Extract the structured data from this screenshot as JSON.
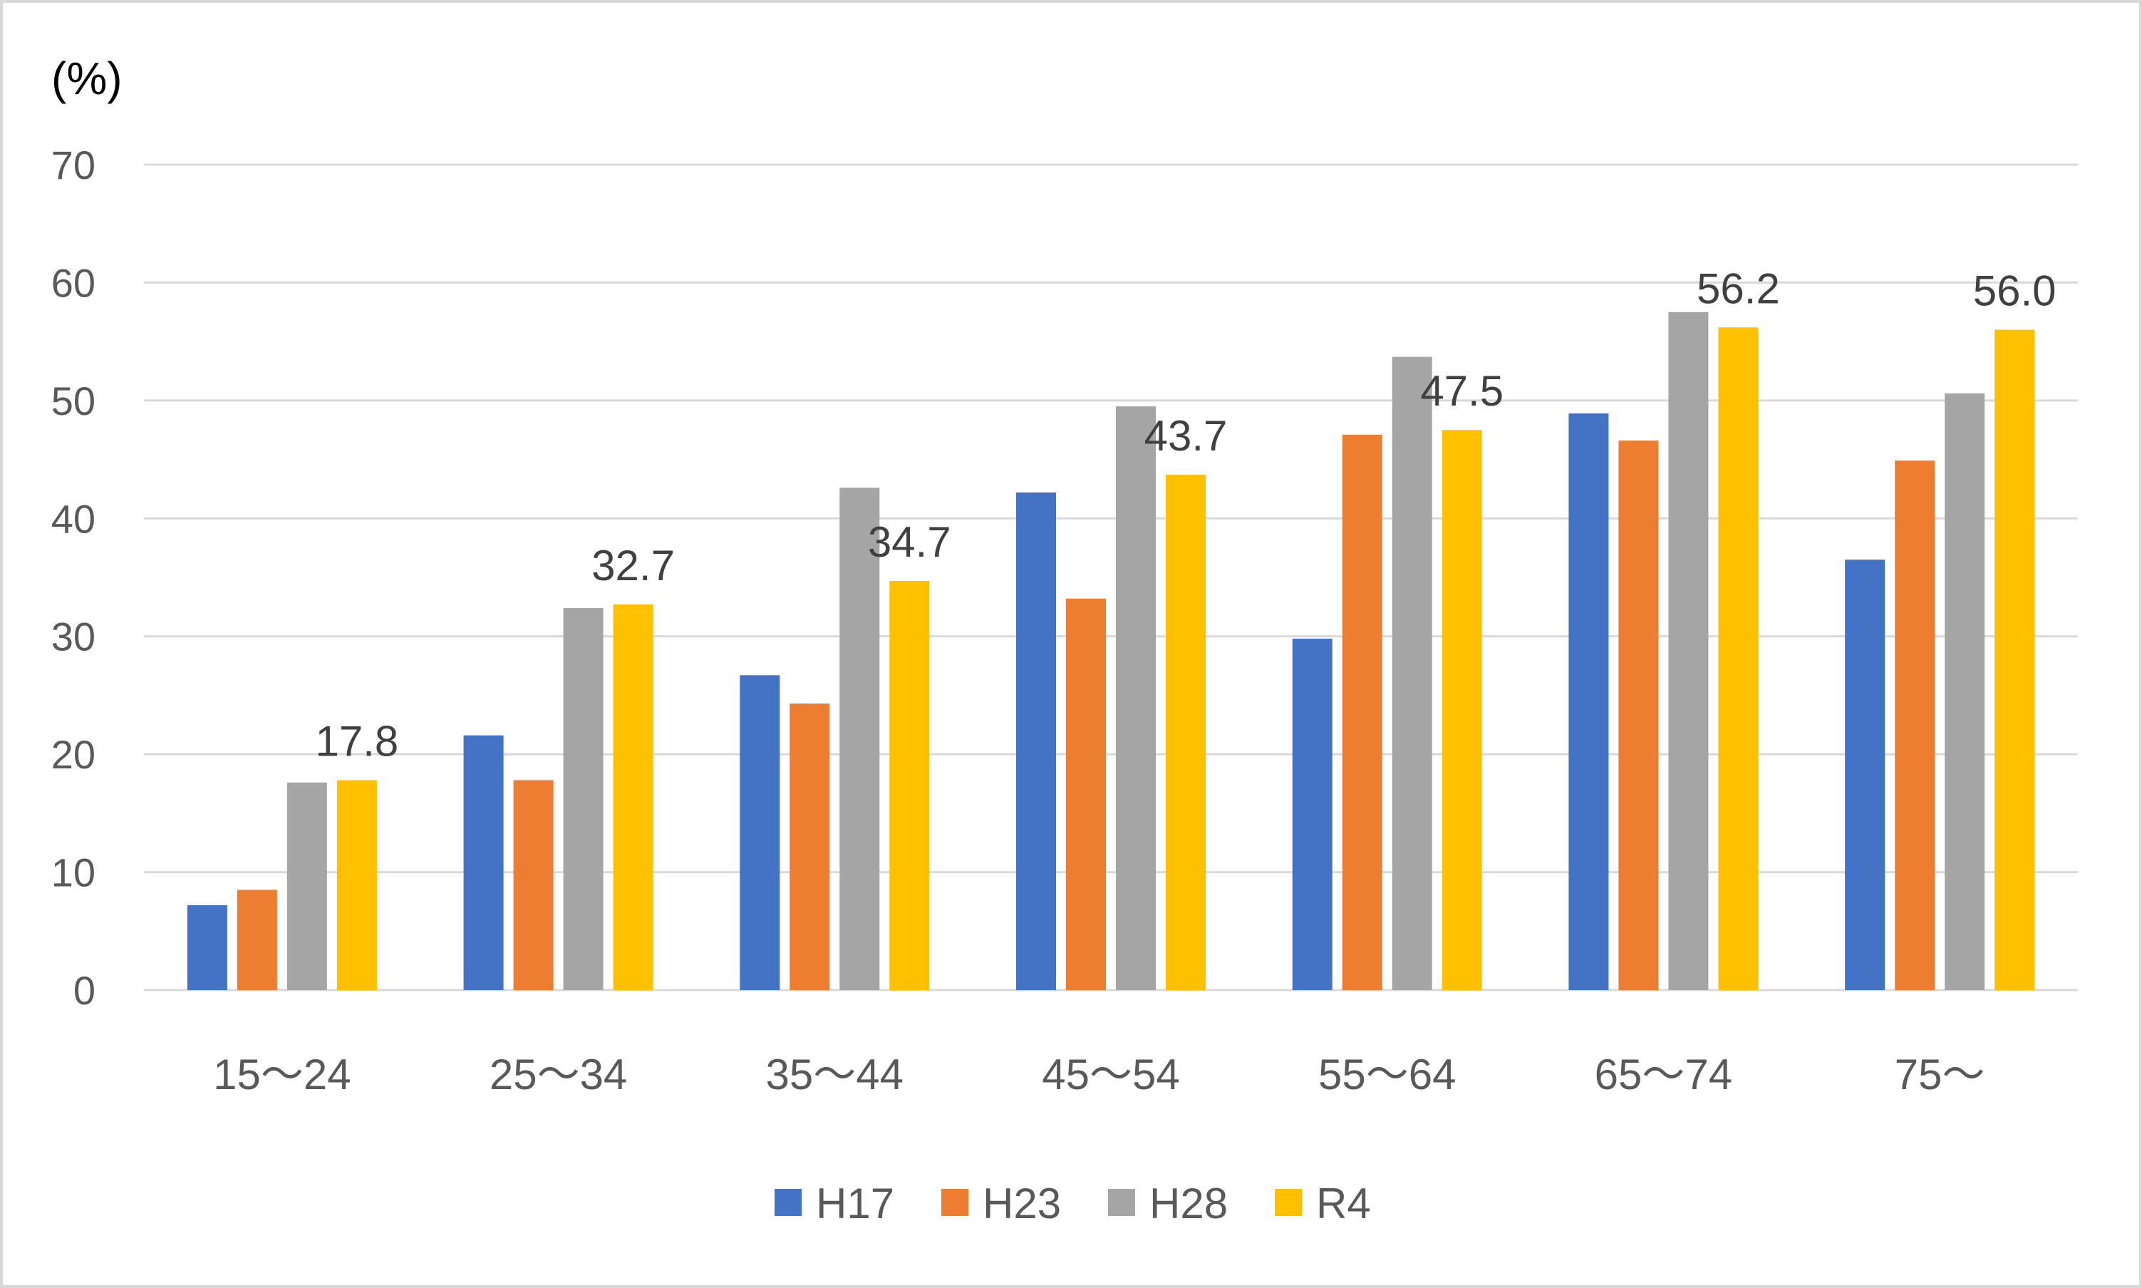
{
  "chart_data": {
    "type": "bar",
    "ylabel": "(%)",
    "ylim": [
      0,
      70
    ],
    "yticks": [
      0,
      10,
      20,
      30,
      40,
      50,
      60,
      70
    ],
    "grid": true,
    "legend_position": "bottom",
    "categories": [
      "15～24",
      "25～34",
      "35～44",
      "45～54",
      "55～64",
      "65～74",
      "75～"
    ],
    "series": [
      {
        "name": "H17",
        "color": "#4472C4",
        "values": [
          7.2,
          21.6,
          26.7,
          42.2,
          29.8,
          48.9,
          36.5
        ]
      },
      {
        "name": "H23",
        "color": "#ED7D31",
        "values": [
          8.5,
          17.8,
          24.3,
          33.2,
          47.1,
          46.6,
          44.9
        ]
      },
      {
        "name": "H28",
        "color": "#A5A5A5",
        "values": [
          17.6,
          32.4,
          42.6,
          49.5,
          53.7,
          57.5,
          50.6
        ]
      },
      {
        "name": "R4",
        "color": "#FFC000",
        "values": [
          17.8,
          32.7,
          34.7,
          43.7,
          47.5,
          56.2,
          56.0
        ]
      }
    ],
    "data_labels": {
      "series": "R4",
      "values": [
        "17.8",
        "32.7",
        "34.7",
        "43.7",
        "47.5",
        "56.2",
        "56.0"
      ]
    }
  }
}
